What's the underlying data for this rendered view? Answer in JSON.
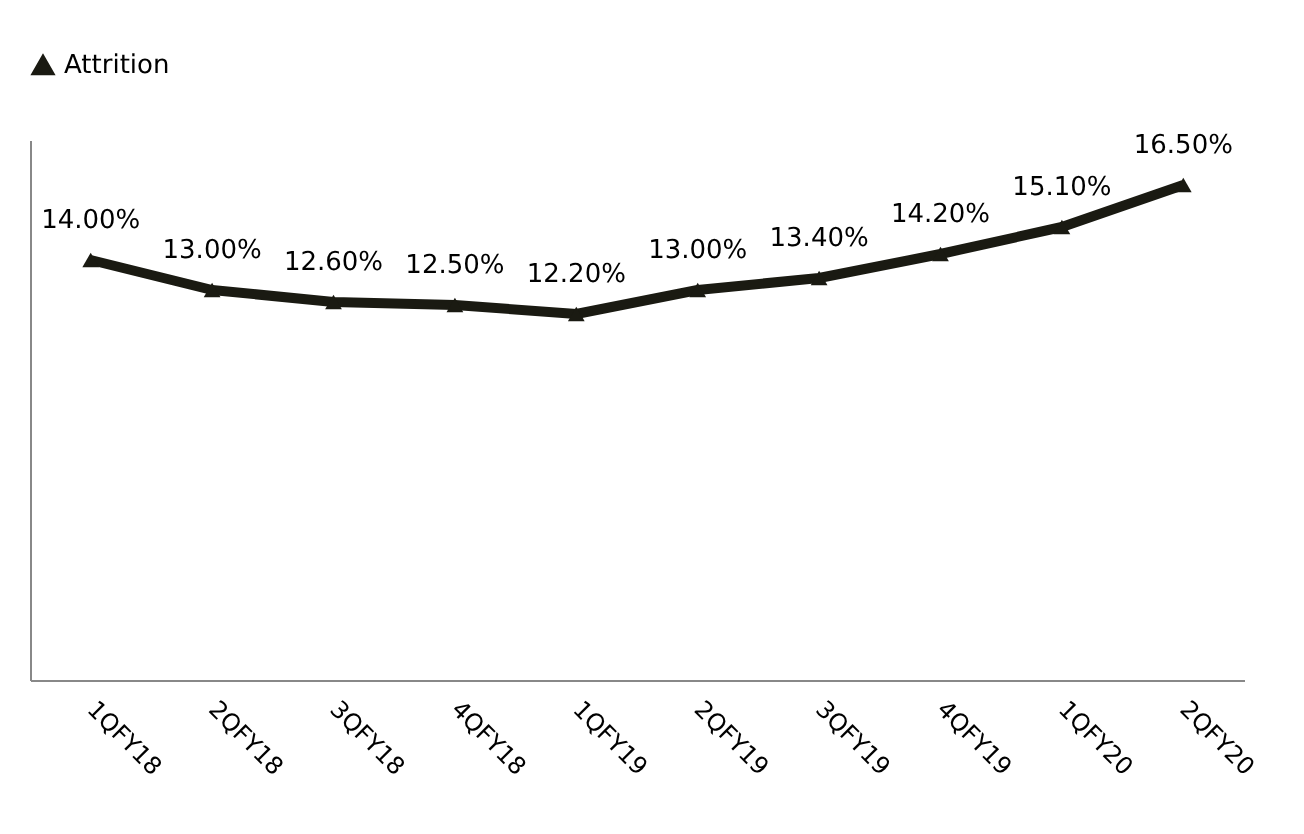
{
  "chart_data": {
    "type": "line",
    "categories": [
      "1QFY18",
      "2QFY18",
      "3QFY18",
      "4QFY18",
      "1QFY19",
      "2QFY19",
      "3QFY19",
      "4QFY19",
      "1QFY20",
      "2QFY20"
    ],
    "series": [
      {
        "name": "Attrition",
        "color": "#1a1a12",
        "values": [
          14.0,
          13.0,
          12.6,
          12.5,
          12.2,
          13.0,
          13.4,
          14.2,
          15.1,
          16.5
        ],
        "value_labels": [
          "14.00%",
          "13.00%",
          "12.60%",
          "12.50%",
          "12.20%",
          "13.00%",
          "13.40%",
          "14.20%",
          "15.10%",
          "16.50%"
        ]
      }
    ],
    "ylim": [
      0,
      18
    ],
    "tick_labels": "x",
    "legend": "top",
    "marker": "triangle",
    "line_style": "solid",
    "grid": false
  }
}
